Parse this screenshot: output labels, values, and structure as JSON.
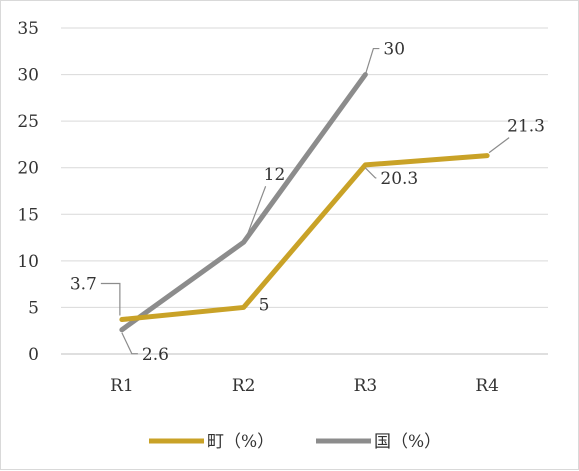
{
  "chart_data": {
    "type": "line",
    "categories": [
      "R1",
      "R2",
      "R3",
      "R4"
    ],
    "ylim": [
      0,
      35
    ],
    "yticks": [
      0,
      5,
      10,
      15,
      20,
      25,
      30,
      35
    ],
    "grid": true,
    "legend_position": "bottom",
    "series": [
      {
        "name": "町（%）",
        "color": "#c9a227",
        "values": [
          3.7,
          5,
          20.3,
          21.3
        ],
        "labels": [
          "3.7",
          "5",
          "20.3",
          "21.3"
        ]
      },
      {
        "name": "国（%）",
        "color": "#8c8c8c",
        "values": [
          2.6,
          12,
          30,
          null
        ],
        "labels": [
          "2.6",
          "12",
          "30",
          null
        ]
      }
    ]
  }
}
